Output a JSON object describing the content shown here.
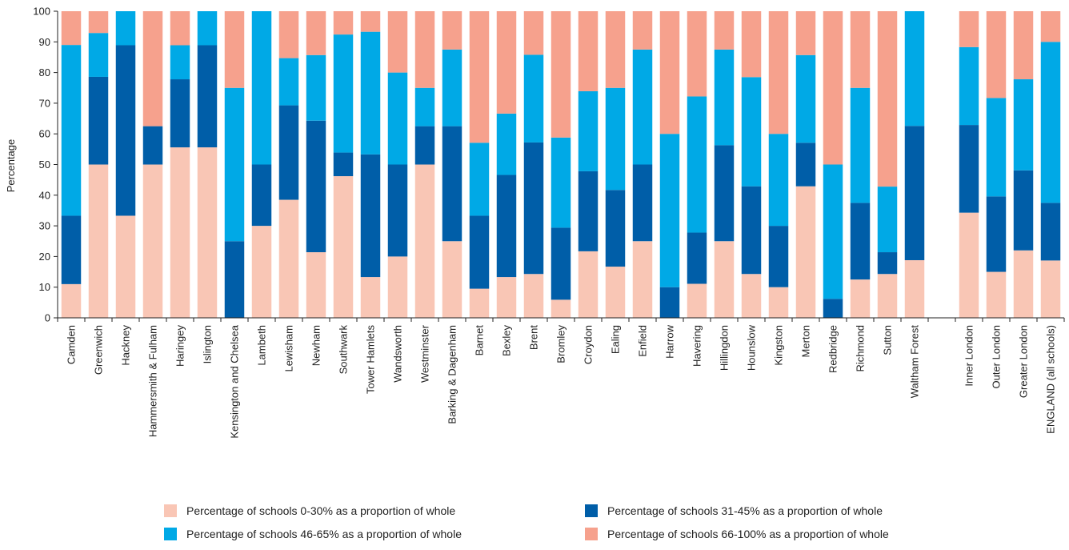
{
  "chart_data": {
    "type": "bar",
    "stacked": true,
    "title": "",
    "xlabel": "",
    "ylabel": "Percentage",
    "ylim": [
      0,
      100
    ],
    "yticks": [
      0,
      10,
      20,
      30,
      40,
      50,
      60,
      70,
      80,
      90,
      100
    ],
    "grid": false,
    "legend_position": "bottom",
    "categories": [
      "Camden",
      "Greenwich",
      "Hackney",
      "Hammersmith & Fulham",
      "Haringey",
      "Islington",
      "Kensington and Chelsea",
      "Lambeth",
      "Lewisham",
      "Newham",
      "Southwark",
      "Tower Hamlets",
      "Wandsworth",
      "Westminster",
      "Barking & Dagenham",
      "Barnet",
      "Bexley",
      "Brent",
      "Bromley",
      "Croydon",
      "Ealing",
      "Enfield",
      "Harrow",
      "Havering",
      "Hillingdon",
      "Hounslow",
      "Kingston",
      "Merton",
      "Redbridge",
      "Richmond",
      "Sutton",
      "Waltham Forest",
      "",
      "Inner London",
      "Outer London",
      "Greater London",
      "ENGLAND (all schools)"
    ],
    "series": [
      {
        "name": "Percentage of schools 0-30% as a proportion of whole",
        "color": "#f9c6b5",
        "values": [
          11,
          50,
          33.3,
          50,
          55.6,
          55.6,
          0,
          30,
          38.5,
          21.4,
          46.2,
          13.3,
          20,
          50,
          25,
          9.5,
          13.3,
          14.3,
          5.9,
          21.7,
          16.7,
          25,
          0,
          11.1,
          25,
          14.3,
          10,
          42.9,
          0,
          12.5,
          14.3,
          18.8,
          0,
          34.3,
          15,
          22,
          18.7
        ]
      },
      {
        "name": "Percentage  of schools 31-45% as a proportion of whole",
        "color": "#005ea8",
        "values": [
          22.3,
          28.6,
          55.6,
          12.5,
          22.2,
          33.3,
          25,
          20,
          30.8,
          42.9,
          7.7,
          40,
          30,
          12.5,
          37.5,
          23.8,
          33.3,
          42.9,
          23.5,
          26.1,
          25,
          25,
          10,
          16.7,
          31.3,
          28.6,
          20,
          14.2,
          6.2,
          25,
          7.1,
          43.8,
          0,
          28.6,
          24.6,
          26.1,
          18.8
        ]
      },
      {
        "name": "Percentage of schools 46-65% as a proportion of whole",
        "color": "#00a9e6",
        "values": [
          55.7,
          14.3,
          11.1,
          0,
          11.1,
          11.1,
          50,
          50,
          15.4,
          21.4,
          38.5,
          40,
          30,
          12.5,
          25,
          23.8,
          20,
          28.6,
          29.4,
          26.1,
          33.3,
          37.5,
          50,
          44.4,
          31.2,
          35.6,
          30,
          28.6,
          43.8,
          37.5,
          21.4,
          37.4,
          0,
          25.4,
          32.1,
          29.7,
          52.5
        ]
      },
      {
        "name": "Percentage  of schools 66-100% as a proportion of whole",
        "color": "#f6a18d",
        "values": [
          11,
          7.1,
          0,
          37.5,
          11.1,
          0,
          25,
          0,
          15.3,
          14.3,
          7.6,
          6.7,
          20,
          25,
          12.5,
          42.9,
          33.4,
          14.2,
          41.2,
          26.1,
          25,
          12.5,
          40,
          27.8,
          12.5,
          21.5,
          40,
          14.3,
          50,
          25,
          57.2,
          0,
          0,
          11.7,
          28.3,
          22.2,
          10
        ]
      }
    ]
  }
}
